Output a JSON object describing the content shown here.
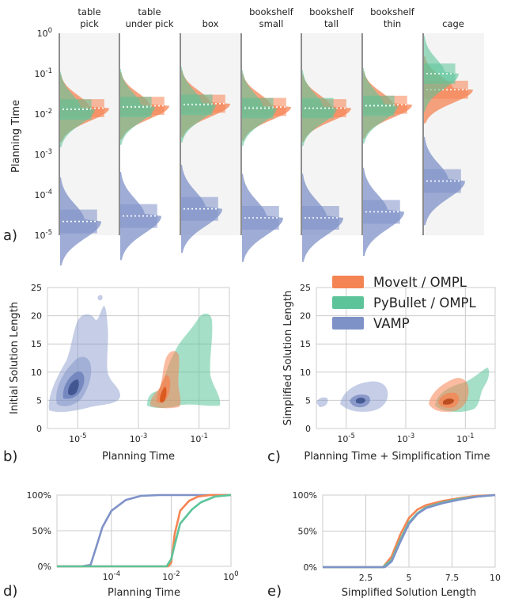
{
  "colors": {
    "moveit": "#f58454",
    "pybullet": "#5dc49a",
    "vamp": "#7f92c8"
  },
  "legend": [
    "MoveIt / OMPL",
    "PyBullet / OMPL",
    "VAMP"
  ],
  "panel_labels": {
    "a": "a)",
    "b": "b)",
    "c": "c)",
    "d": "d)",
    "e": "e)"
  },
  "chart_data": [
    {
      "panel": "a",
      "type": "violin",
      "ylabel": "Planning Time",
      "yscale": "log",
      "yticks": [
        "10^0",
        "10^-1",
        "10^-2",
        "10^-3",
        "10^-4",
        "10^-5"
      ],
      "categories": [
        "table\npick",
        "table\nunder pick",
        "box",
        "bookshelf\nsmall",
        "bookshelf\ntall",
        "bookshelf\nthin",
        "cage"
      ],
      "series": [
        {
          "name": "MoveIt / OMPL",
          "median": [
            0.014,
            0.016,
            0.018,
            0.015,
            0.014,
            0.017,
            0.04
          ]
        },
        {
          "name": "PyBullet / OMPL",
          "median": [
            0.013,
            0.015,
            0.017,
            0.014,
            0.014,
            0.016,
            0.1
          ]
        },
        {
          "name": "VAMP",
          "median": [
            2.2e-05,
            3e-05,
            4.5e-05,
            2.7e-05,
            2.7e-05,
            3.8e-05,
            0.00022
          ]
        }
      ]
    },
    {
      "panel": "b",
      "type": "kde2d",
      "xlabel": "Planning Time",
      "ylabel": "Initial Solution Length",
      "xscale": "log",
      "xlim": [
        1e-06,
        1
      ],
      "ylim": [
        0,
        25
      ],
      "xticks": [
        "10^-5",
        "10^-3",
        "10^-1"
      ],
      "yticks": [
        "0",
        "5",
        "10",
        "15",
        "20",
        "25"
      ],
      "series": [
        {
          "name": "MoveIt / OMPL",
          "center_x": 0.015,
          "center_y": 6
        },
        {
          "name": "PyBullet / OMPL",
          "center_x": 0.02,
          "center_y": 6
        },
        {
          "name": "VAMP",
          "center_x": 3e-05,
          "center_y": 7
        }
      ]
    },
    {
      "panel": "c",
      "type": "kde2d",
      "xlabel": "Planning Time + Simplification Time",
      "ylabel": "Simplified Solution Length",
      "xscale": "log",
      "xlim": [
        1e-06,
        1
      ],
      "ylim": [
        0,
        25
      ],
      "xticks": [
        "10^-5",
        "10^-3",
        "10^-1"
      ],
      "yticks": [
        "0",
        "5",
        "10",
        "15",
        "20",
        "25"
      ],
      "series": [
        {
          "name": "MoveIt / OMPL",
          "center_x": 0.05,
          "center_y": 4.8
        },
        {
          "name": "PyBullet / OMPL",
          "center_x": 0.08,
          "center_y": 4.6
        },
        {
          "name": "VAMP",
          "center_x": 0.00015,
          "center_y": 4.8
        }
      ]
    },
    {
      "panel": "d",
      "type": "line",
      "xlabel": "Planning Time",
      "xscale": "log",
      "xticks": [
        "10^-4",
        "10^-2",
        "10^0"
      ],
      "yticks": [
        "0%",
        "50%",
        "100%"
      ],
      "series": [
        {
          "name": "VAMP",
          "x": [
            1.5e-06,
            1e-05,
            2e-05,
            3e-05,
            5e-05,
            0.0001,
            0.0003,
            0.001,
            0.004,
            1
          ],
          "y": [
            0,
            0,
            0.02,
            0.25,
            0.55,
            0.78,
            0.93,
            0.99,
            1.0,
            1.0
          ]
        },
        {
          "name": "MoveIt / OMPL",
          "x": [
            1.5e-06,
            0.008,
            0.01,
            0.013,
            0.02,
            0.04,
            0.08,
            0.2,
            1
          ],
          "y": [
            0,
            0,
            0.05,
            0.45,
            0.78,
            0.92,
            0.98,
            1.0,
            1.0
          ]
        },
        {
          "name": "PyBullet / OMPL",
          "x": [
            1.5e-06,
            0.007,
            0.01,
            0.014,
            0.02,
            0.05,
            0.1,
            0.3,
            1
          ],
          "y": [
            0,
            0,
            0.1,
            0.35,
            0.6,
            0.8,
            0.9,
            0.98,
            1.0
          ]
        }
      ]
    },
    {
      "panel": "e",
      "type": "line",
      "xlabel": "Simplified Solution Length",
      "xlim": [
        0,
        10
      ],
      "xticks": [
        "2.5",
        "5",
        "7.5",
        "10"
      ],
      "yticks": [
        "0%",
        "50%",
        "100%"
      ],
      "series": [
        {
          "name": "MoveIt / OMPL",
          "x": [
            0,
            3.5,
            4,
            4.5,
            5,
            5.5,
            6,
            7,
            8,
            9,
            10
          ],
          "y": [
            0,
            0,
            0.15,
            0.45,
            0.68,
            0.8,
            0.86,
            0.92,
            0.96,
            0.99,
            1.0
          ]
        },
        {
          "name": "PyBullet / OMPL",
          "x": [
            0,
            3.5,
            4,
            4.5,
            5,
            5.5,
            6,
            7,
            8,
            9,
            10
          ],
          "y": [
            0,
            0,
            0.1,
            0.38,
            0.62,
            0.75,
            0.83,
            0.9,
            0.95,
            0.98,
            1.0
          ]
        },
        {
          "name": "VAMP",
          "x": [
            0,
            3.6,
            4,
            4.5,
            5,
            5.5,
            6,
            7,
            8,
            9,
            10
          ],
          "y": [
            0,
            0,
            0.08,
            0.35,
            0.6,
            0.74,
            0.82,
            0.89,
            0.94,
            0.98,
            1.0
          ]
        }
      ]
    }
  ]
}
